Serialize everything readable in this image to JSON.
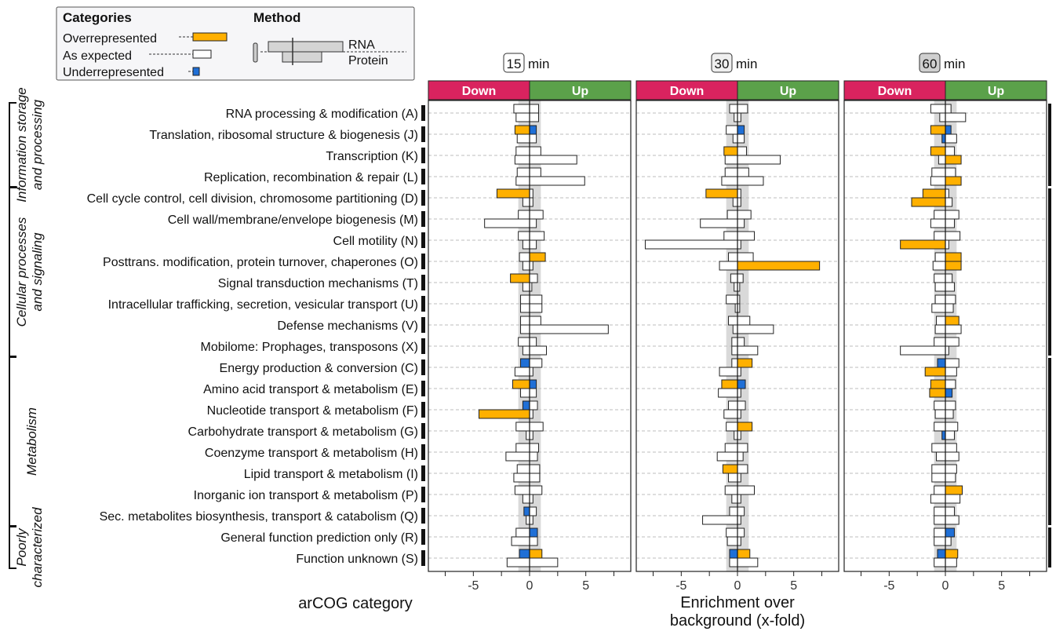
{
  "colors": {
    "over": "#FFB000",
    "expected": "#FFFFFF",
    "under": "#1F6FD6",
    "down_strip": "#D9235F",
    "up_strip": "#5BA14A",
    "shade": "#D9D9D9",
    "grid": "#BDBDBD",
    "legend_bg": "#F6F6F8"
  },
  "legend": {
    "categories_title": "Categories",
    "method_title": "Method",
    "items": [
      "Overrepresented",
      "As expected",
      "Underrepresented"
    ],
    "method_items": [
      "RNA",
      "Protein"
    ]
  },
  "groups": [
    {
      "lines": [
        "Information storage",
        "and processing"
      ],
      "start": 0,
      "end": 3
    },
    {
      "lines": [
        "Cellular processes",
        "and signaling"
      ],
      "start": 4,
      "end": 11
    },
    {
      "lines": [
        "Metabolism"
      ],
      "start": 12,
      "end": 19
    },
    {
      "lines": [
        "Poorly",
        "characterized"
      ],
      "start": 20,
      "end": 21
    }
  ],
  "ylabel": "arCOG category",
  "xlabel_lines": [
    "Enrichment over",
    "background (x-fold)"
  ],
  "chart_data": {
    "type": "bar",
    "categories": [
      "RNA processing & modification (A)",
      "Translation, ribosomal structure & biogenesis (J)",
      "Transcription (K)",
      "Replication, recombination & repair (L)",
      "Cell cycle control, cell division, chromosome partitioning (D)",
      "Cell wall/membrane/envelope biogenesis (M)",
      "Cell motility (N)",
      "Posttrans. modification, protein turnover, chaperones (O)",
      "Signal transduction mechanisms (T)",
      "Intracellular trafficking, secretion, vesicular transport (U)",
      "Defense mechanisms (V)",
      "Mobilome: Prophages, transposons (X)",
      "Energy production & conversion (C)",
      "Amino acid transport & metabolism (E)",
      "Nucleotide transport & metabolism (F)",
      "Carbohydrate transport & metabolism (G)",
      "Coenzyme transport & metabolism (H)",
      "Lipid transport & metabolism (I)",
      "Inorganic ion transport & metabolism (P)",
      "Sec. metabolites biosynthesis, transport & catabolism (Q)",
      "General function prediction only (R)",
      "Function unknown (S)"
    ],
    "xlim": [
      -9,
      9
    ],
    "xticks": [
      -5,
      0,
      5
    ],
    "strip_labels": [
      "Down",
      "Up"
    ],
    "methods": [
      "RNA",
      "Protein"
    ],
    "panels": [
      {
        "time": "15",
        "unit": "min",
        "bars": [
          {
            "down": [
              -1.4,
              "e",
              -1.2,
              "e"
            ],
            "up": [
              0.8,
              "e",
              0.8,
              "e"
            ]
          },
          {
            "down": [
              -1.3,
              "o",
              -1.1,
              "e"
            ],
            "up": [
              0.6,
              "u",
              0.6,
              "e"
            ]
          },
          {
            "down": [
              -1.2,
              "e",
              -1.3,
              "e"
            ],
            "up": [
              1.0,
              "e",
              4.2,
              "e"
            ]
          },
          {
            "down": [
              -1.1,
              "e",
              -1.2,
              "e"
            ],
            "up": [
              1.0,
              "e",
              4.9,
              "e"
            ]
          },
          {
            "down": [
              -2.9,
              "o",
              -0.6,
              "e"
            ],
            "up": [
              0.3,
              "e",
              0.3,
              "e"
            ]
          },
          {
            "down": [
              -1.0,
              "e",
              -4.0,
              "e"
            ],
            "up": [
              1.2,
              "e",
              0.6,
              "e"
            ]
          },
          {
            "down": [
              -1.0,
              "e",
              -0.6,
              "e"
            ],
            "up": [
              1.3,
              "e",
              0.6,
              "e"
            ]
          },
          {
            "down": [
              -0.9,
              "e",
              -0.6,
              "e"
            ],
            "up": [
              1.4,
              "o",
              0.3,
              "e"
            ]
          },
          {
            "down": [
              -1.7,
              "o",
              -0.6,
              "e"
            ],
            "up": [
              0.7,
              "e",
              0.2,
              "e"
            ]
          },
          {
            "down": [
              -0.8,
              "e",
              -0.8,
              "e"
            ],
            "up": [
              1.1,
              "e",
              1.1,
              "e"
            ]
          },
          {
            "down": [
              -0.8,
              "e",
              -0.8,
              "e"
            ],
            "up": [
              1.0,
              "e",
              7.0,
              "e"
            ]
          },
          {
            "down": [
              -1.0,
              "e",
              -0.6,
              "e"
            ],
            "up": [
              0.6,
              "e",
              1.5,
              "e"
            ]
          },
          {
            "down": [
              -0.8,
              "u",
              -1.3,
              "e"
            ],
            "up": [
              1.1,
              "e",
              0.3,
              "e"
            ]
          },
          {
            "down": [
              -1.5,
              "o",
              -0.8,
              "e"
            ],
            "up": [
              0.6,
              "u",
              0.6,
              "e"
            ]
          },
          {
            "down": [
              -0.6,
              "u",
              -4.5,
              "o"
            ],
            "up": [
              0.7,
              "e",
              0.3,
              "e"
            ]
          },
          {
            "down": [
              -1.2,
              "e",
              -0.3,
              "e"
            ],
            "up": [
              1.2,
              "e",
              0.3,
              "e"
            ]
          },
          {
            "down": [
              -1.2,
              "e",
              -2.1,
              "e"
            ],
            "up": [
              0.8,
              "e",
              0.7,
              "e"
            ]
          },
          {
            "down": [
              -1.1,
              "e",
              -1.4,
              "e"
            ],
            "up": [
              0.9,
              "e",
              0.9,
              "e"
            ]
          },
          {
            "down": [
              -1.3,
              "e",
              -0.6,
              "e"
            ],
            "up": [
              1.1,
              "e",
              0.3,
              "e"
            ]
          },
          {
            "down": [
              -0.5,
              "u",
              -0.3,
              "e"
            ],
            "up": [
              0.6,
              "e",
              0.3,
              "e"
            ]
          },
          {
            "down": [
              -1.2,
              "e",
              -1.6,
              "e"
            ],
            "up": [
              0.7,
              "u",
              0.7,
              "e"
            ]
          },
          {
            "down": [
              -0.9,
              "u",
              -2.0,
              "e"
            ],
            "up": [
              1.1,
              "o",
              2.5,
              "e"
            ]
          }
        ]
      },
      {
        "time": "30",
        "unit": "min",
        "bars": [
          {
            "down": [
              -0.7,
              "e",
              -0.3,
              "e"
            ],
            "up": [
              0.9,
              "e",
              0.3,
              "e"
            ]
          },
          {
            "down": [
              -1.0,
              "e",
              -0.4,
              "e"
            ],
            "up": [
              0.6,
              "u",
              0.6,
              "e"
            ]
          },
          {
            "down": [
              -1.2,
              "o",
              -1.1,
              "e"
            ],
            "up": [
              0.8,
              "e",
              3.8,
              "e"
            ]
          },
          {
            "down": [
              -1.1,
              "e",
              -1.4,
              "e"
            ],
            "up": [
              1.0,
              "e",
              2.3,
              "e"
            ]
          },
          {
            "down": [
              -2.8,
              "o",
              -0.4,
              "e"
            ],
            "up": [
              0.3,
              "e",
              0.3,
              "e"
            ]
          },
          {
            "down": [
              -0.9,
              "e",
              -3.3,
              "e"
            ],
            "up": [
              1.2,
              "e",
              0.6,
              "e"
            ]
          },
          {
            "down": [
              -1.2,
              "e",
              -8.2,
              "e"
            ],
            "up": [
              1.5,
              "e",
              0.3,
              "e"
            ]
          },
          {
            "down": [
              -0.8,
              "e",
              -1.6,
              "e"
            ],
            "up": [
              1.4,
              "e",
              7.3,
              "o"
            ]
          },
          {
            "down": [
              -0.6,
              "e",
              -0.3,
              "e"
            ],
            "up": [
              0.5,
              "e",
              0.2,
              "e"
            ]
          },
          {
            "down": [
              -1.0,
              "e",
              -0.2,
              "e"
            ],
            "up": [
              0.2,
              "e",
              0.2,
              "e"
            ]
          },
          {
            "down": [
              -0.8,
              "e",
              -0.4,
              "e"
            ],
            "up": [
              1.1,
              "e",
              3.2,
              "e"
            ]
          },
          {
            "down": [
              -0.5,
              "e",
              -0.5,
              "e"
            ],
            "up": [
              0.6,
              "e",
              1.8,
              "e"
            ]
          },
          {
            "down": [
              -0.5,
              "e",
              -1.6,
              "e"
            ],
            "up": [
              1.3,
              "o",
              0.3,
              "e"
            ]
          },
          {
            "down": [
              -1.4,
              "o",
              -1.7,
              "e"
            ],
            "up": [
              0.7,
              "u",
              0.3,
              "e"
            ]
          },
          {
            "down": [
              -0.8,
              "e",
              -1.2,
              "e"
            ],
            "up": [
              0.7,
              "e",
              0.3,
              "e"
            ]
          },
          {
            "down": [
              -1.0,
              "e",
              -0.3,
              "e"
            ],
            "up": [
              1.3,
              "o",
              0.3,
              "e"
            ]
          },
          {
            "down": [
              -1.1,
              "e",
              -1.8,
              "e"
            ],
            "up": [
              0.9,
              "e",
              0.5,
              "e"
            ]
          },
          {
            "down": [
              -1.3,
              "o",
              -0.8,
              "e"
            ],
            "up": [
              0.9,
              "e",
              0.3,
              "e"
            ]
          },
          {
            "down": [
              -1.1,
              "e",
              -0.5,
              "e"
            ],
            "up": [
              1.5,
              "e",
              0.3,
              "e"
            ]
          },
          {
            "down": [
              -0.7,
              "e",
              -3.1,
              "e"
            ],
            "up": [
              0.6,
              "e",
              0.3,
              "e"
            ]
          },
          {
            "down": [
              -1.0,
              "e",
              -0.9,
              "e"
            ],
            "up": [
              0.6,
              "e",
              0.3,
              "e"
            ]
          },
          {
            "down": [
              -0.7,
              "u",
              -0.7,
              "e"
            ],
            "up": [
              1.1,
              "o",
              1.8,
              "e"
            ]
          }
        ]
      },
      {
        "time": "60",
        "unit": "min",
        "bars": [
          {
            "down": [
              -1.3,
              "e",
              -0.5,
              "e"
            ],
            "up": [
              0.5,
              "e",
              1.8,
              "e"
            ]
          },
          {
            "down": [
              -1.3,
              "o",
              -0.3,
              "u"
            ],
            "up": [
              0.5,
              "u",
              1.0,
              "e"
            ]
          },
          {
            "down": [
              -1.3,
              "o",
              -0.6,
              "e"
            ],
            "up": [
              0.8,
              "e",
              1.4,
              "o"
            ]
          },
          {
            "down": [
              -1.2,
              "e",
              -1.3,
              "e"
            ],
            "up": [
              0.9,
              "e",
              1.4,
              "o"
            ]
          },
          {
            "down": [
              -2.0,
              "o",
              -3.0,
              "o"
            ],
            "up": [
              0.3,
              "e",
              0.6,
              "e"
            ]
          },
          {
            "down": [
              -1.0,
              "e",
              -1.3,
              "e"
            ],
            "up": [
              1.2,
              "e",
              0.8,
              "e"
            ]
          },
          {
            "down": [
              -1.0,
              "e",
              -4.0,
              "o"
            ],
            "up": [
              1.3,
              "e",
              0.3,
              "e"
            ]
          },
          {
            "down": [
              -0.9,
              "e",
              -1.1,
              "e"
            ],
            "up": [
              1.4,
              "o",
              1.4,
              "o"
            ]
          },
          {
            "down": [
              -1.0,
              "e",
              -0.9,
              "e"
            ],
            "up": [
              0.6,
              "e",
              0.8,
              "e"
            ]
          },
          {
            "down": [
              -0.9,
              "e",
              -1.2,
              "e"
            ],
            "up": [
              0.9,
              "e",
              0.7,
              "e"
            ]
          },
          {
            "down": [
              -0.8,
              "e",
              -0.9,
              "e"
            ],
            "up": [
              1.2,
              "o",
              1.4,
              "e"
            ]
          },
          {
            "down": [
              -1.0,
              "e",
              -4.0,
              "e"
            ],
            "up": [
              1.2,
              "e",
              0.3,
              "e"
            ]
          },
          {
            "down": [
              -0.7,
              "u",
              -1.8,
              "o"
            ],
            "up": [
              1.2,
              "e",
              1.0,
              "e"
            ]
          },
          {
            "down": [
              -1.3,
              "o",
              -1.4,
              "o"
            ],
            "up": [
              0.9,
              "e",
              0.6,
              "u"
            ]
          },
          {
            "down": [
              -1.0,
              "e",
              -0.9,
              "e"
            ],
            "up": [
              0.9,
              "e",
              0.7,
              "e"
            ]
          },
          {
            "down": [
              -1.0,
              "e",
              -0.3,
              "u"
            ],
            "up": [
              1.1,
              "e",
              0.8,
              "e"
            ]
          },
          {
            "down": [
              -1.2,
              "e",
              -0.8,
              "e"
            ],
            "up": [
              1.0,
              "e",
              1.2,
              "e"
            ]
          },
          {
            "down": [
              -1.2,
              "e",
              -1.2,
              "e"
            ],
            "up": [
              1.0,
              "e",
              0.9,
              "e"
            ]
          },
          {
            "down": [
              -1.0,
              "e",
              -1.3,
              "e"
            ],
            "up": [
              1.5,
              "o",
              1.3,
              "e"
            ]
          },
          {
            "down": [
              -1.0,
              "e",
              -1.0,
              "e"
            ],
            "up": [
              0.8,
              "e",
              1.2,
              "e"
            ]
          },
          {
            "down": [
              -1.0,
              "e",
              -1.0,
              "e"
            ],
            "up": [
              0.8,
              "u",
              0.5,
              "e"
            ]
          },
          {
            "down": [
              -0.7,
              "u",
              -1.0,
              "e"
            ],
            "up": [
              1.1,
              "o",
              1.0,
              "e"
            ]
          }
        ]
      }
    ]
  }
}
